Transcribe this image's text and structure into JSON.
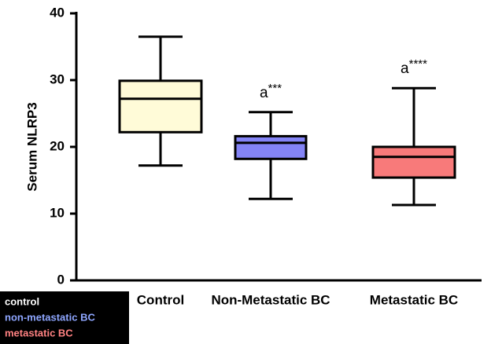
{
  "chart_data": {
    "type": "box",
    "y_label": "Serum NLRP3",
    "ylim": [
      0,
      40
    ],
    "yticks": [
      0,
      10,
      20,
      30,
      40
    ],
    "boxes": [
      {
        "name": "Control",
        "color": "#fffbd8",
        "min": 17.2,
        "q1": 22.2,
        "median": 27.2,
        "q3": 29.9,
        "max": 36.5
      },
      {
        "name": "Non-Metastatic BC",
        "color": "#8484f6",
        "min": 12.2,
        "q1": 18.2,
        "median": 20.6,
        "q3": 21.6,
        "max": 25.2,
        "annotation": "a",
        "annotation_sup": "***"
      },
      {
        "name": "Metastatic BC",
        "color": "#f87a7a",
        "min": 11.3,
        "q1": 15.4,
        "median": 18.5,
        "q3": 20.0,
        "max": 28.8,
        "annotation": "a",
        "annotation_sup": "****"
      }
    ],
    "legend": [
      {
        "label": "control",
        "color": "#ffffff"
      },
      {
        "label": "non-metastatic BC",
        "color": "#8ea6ff"
      },
      {
        "label": "metastatic BC",
        "color": "#ff8282"
      }
    ]
  }
}
